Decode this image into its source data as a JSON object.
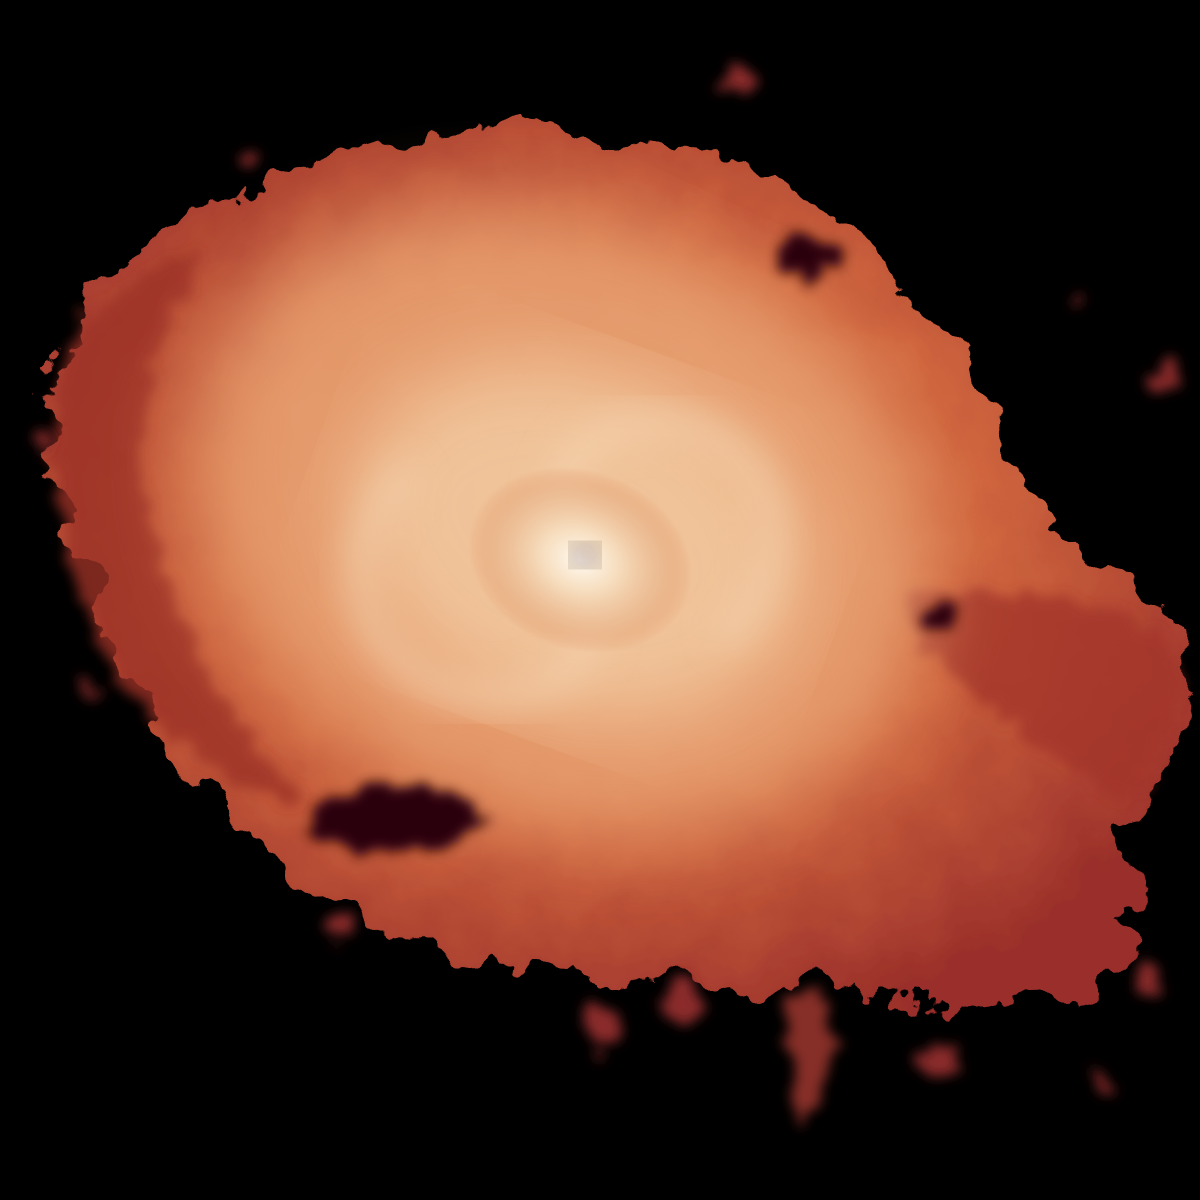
{
  "image": {
    "subject": "spiral-cloud-emission-map",
    "colormap": {
      "background": "#000000",
      "deep": "#3a0a10",
      "dark": "#8c2a28",
      "mid": "#c9503a",
      "warm": "#e08a5c",
      "light": "#f0c49c",
      "core": "#fbf3e6",
      "eye": "#5a3a30"
    }
  }
}
